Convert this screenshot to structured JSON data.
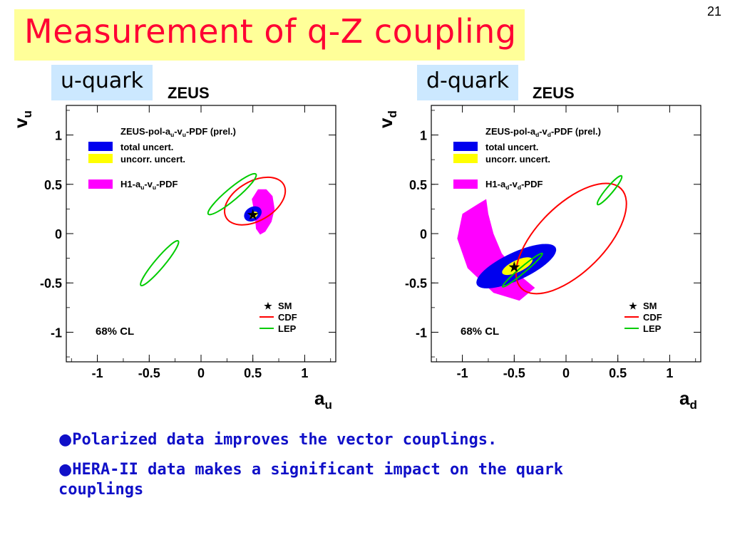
{
  "slide": {
    "number": "21",
    "title": "Measurement of q-Z coupling",
    "bullets": [
      "Polarized data improves the vector couplings.",
      "HERA-II data makes a significant impact on the quark couplings"
    ]
  },
  "colors": {
    "title": "#ff0033",
    "title_bg": "#ffff99",
    "tag_bg": "#cce8ff",
    "total": "#0000ee",
    "uncorr": "#ffff00",
    "h1": "#ff00ff",
    "cdf": "#ff0000",
    "lep": "#00cc00",
    "bullet_text": "#1010c8"
  },
  "chart_data": [
    {
      "type": "scatter",
      "tag": "u-quark",
      "header": "ZEUS",
      "xlabel": "a",
      "xlabel_sub": "u",
      "ylabel": "v",
      "ylabel_sub": "u",
      "xlim": [
        -1.3,
        1.3
      ],
      "ylim": [
        -1.3,
        1.3
      ],
      "xticks": [
        -1,
        -0.5,
        0,
        0.5,
        1
      ],
      "xtick_labels": [
        "-1",
        "-0.5",
        "0",
        "0.5",
        "1"
      ],
      "yticks": [
        1,
        0.5,
        0,
        -0.5,
        -1
      ],
      "ytick_labels": [
        "1",
        "0.5",
        "0",
        "-0.5",
        "-1"
      ],
      "legend_top": {
        "title_parts": [
          "ZEUS-pol-a",
          "u",
          "-v",
          "u",
          "-PDF (prel.)"
        ],
        "total": "total uncert.",
        "uncorr": "uncorr. uncert.",
        "h1_parts": [
          "H1-a",
          "u",
          "-v",
          "u",
          "-PDF"
        ]
      },
      "legend_bottom": {
        "sm": "SM",
        "cdf": "CDF",
        "lep": "LEP"
      },
      "cl_label": "68% CL",
      "sm_point": [
        0.5,
        0.19
      ],
      "total_region": {
        "cx": 0.5,
        "cy": 0.2,
        "rx": 0.09,
        "ry": 0.07,
        "angle": -30
      },
      "uncorr_region": {
        "cx": 0.51,
        "cy": 0.19,
        "rx": 0.04,
        "ry": 0.03,
        "angle": -30
      },
      "h1_region": [
        [
          0.55,
          0.45
        ],
        [
          0.63,
          0.45
        ],
        [
          0.69,
          0.38
        ],
        [
          0.71,
          0.25
        ],
        [
          0.68,
          0.12
        ],
        [
          0.62,
          0.02
        ],
        [
          0.57,
          -0.01
        ],
        [
          0.53,
          0.05
        ],
        [
          0.52,
          0.18
        ],
        [
          0.49,
          0.35
        ]
      ],
      "cdf_contour": {
        "cx": 0.52,
        "cy": 0.33,
        "rx": 0.32,
        "ry": 0.2,
        "angle": -30
      },
      "lep_contours": [
        {
          "cx": 0.3,
          "cy": 0.4,
          "rx": 0.3,
          "ry": 0.06,
          "angle": 40
        },
        {
          "cx": -0.4,
          "cy": -0.3,
          "rx": 0.28,
          "ry": 0.05,
          "angle": 50
        }
      ]
    },
    {
      "type": "scatter",
      "tag": "d-quark",
      "header": "ZEUS",
      "xlabel": "a",
      "xlabel_sub": "d",
      "ylabel": "v",
      "ylabel_sub": "d",
      "xlim": [
        -1.3,
        1.3
      ],
      "ylim": [
        -1.3,
        1.3
      ],
      "xticks": [
        -1,
        -0.5,
        0,
        0.5,
        1
      ],
      "xtick_labels": [
        "-1",
        "-0.5",
        "0",
        "0.5",
        "1"
      ],
      "yticks": [
        1,
        0.5,
        0,
        -0.5,
        -1
      ],
      "ytick_labels": [
        "1",
        "0.5",
        "0",
        "-0.5",
        "-1"
      ],
      "legend_top": {
        "title_parts": [
          "ZEUS-pol-a",
          "d",
          "-v",
          "d",
          "-PDF (prel.)"
        ],
        "total": "total uncert.",
        "uncorr": "uncorr. uncert.",
        "h1_parts": [
          "H1-a",
          "d",
          "-v",
          "d",
          "-PDF"
        ]
      },
      "legend_bottom": {
        "sm": "SM",
        "cdf": "CDF",
        "lep": "LEP"
      },
      "cl_label": "68% CL",
      "sm_point": [
        -0.5,
        -0.34
      ],
      "total_region": {
        "cx": -0.48,
        "cy": -0.33,
        "rx": 0.42,
        "ry": 0.14,
        "angle": -25
      },
      "uncorr_region": {
        "cx": -0.47,
        "cy": -0.33,
        "rx": 0.16,
        "ry": 0.06,
        "angle": -25
      },
      "h1_region": [
        [
          -0.85,
          0.3
        ],
        [
          -0.77,
          0.35
        ],
        [
          -0.75,
          0.2
        ],
        [
          -0.7,
          0.0
        ],
        [
          -0.62,
          -0.2
        ],
        [
          -0.45,
          -0.42
        ],
        [
          -0.3,
          -0.55
        ],
        [
          -0.45,
          -0.68
        ],
        [
          -0.7,
          -0.6
        ],
        [
          -0.95,
          -0.35
        ],
        [
          -1.05,
          -0.05
        ],
        [
          -1.0,
          0.2
        ]
      ],
      "cdf_contour": {
        "cx": 0.05,
        "cy": -0.05,
        "rx": 0.68,
        "ry": 0.34,
        "angle": -45
      },
      "lep_contours": [
        {
          "cx": 0.42,
          "cy": 0.44,
          "rx": 0.18,
          "ry": 0.035,
          "angle": 50
        },
        {
          "cx": -0.42,
          "cy": -0.37,
          "rx": 0.25,
          "ry": 0.03,
          "angle": 40
        }
      ]
    }
  ]
}
